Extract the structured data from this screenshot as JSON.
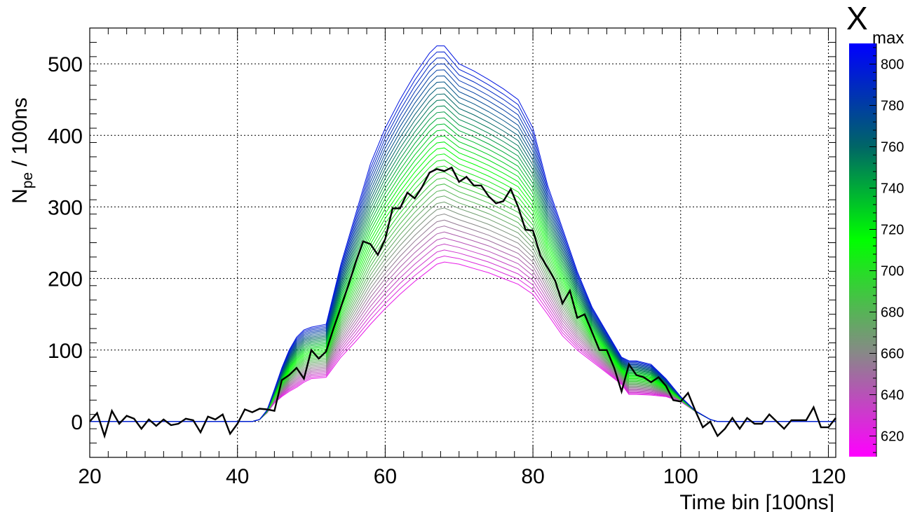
{
  "chart_data": {
    "type": "line",
    "xlabel": "Time bin [100ns]",
    "ylabel_main": "N",
    "ylabel_sub": "pe",
    "ylabel_rest": " / 100ns",
    "xlim": [
      20,
      121
    ],
    "ylim": [
      -50,
      550
    ],
    "xticks": [
      20,
      40,
      60,
      80,
      100,
      120
    ],
    "yticks": [
      0,
      100,
      200,
      300,
      400,
      500
    ],
    "grid": true,
    "colorbar": {
      "title_main": "X",
      "title_sub": "max",
      "range": [
        610,
        810
      ],
      "ticks": [
        620,
        640,
        660,
        680,
        700,
        720,
        740,
        760,
        780,
        800
      ],
      "colors": [
        {
          "v": 610,
          "c": "#ff00ff"
        },
        {
          "v": 660,
          "c": "#888888"
        },
        {
          "v": 715,
          "c": "#00ff00"
        },
        {
          "v": 760,
          "c": "#006666"
        },
        {
          "v": 810,
          "c": "#0000ff"
        }
      ]
    },
    "model_family": {
      "xmax_values": [
        620,
        625,
        630,
        635,
        640,
        645,
        650,
        655,
        660,
        665,
        670,
        675,
        680,
        685,
        690,
        695,
        700,
        705,
        710,
        715,
        720,
        725,
        730,
        735,
        740,
        745,
        750,
        755,
        760,
        765,
        770,
        775,
        780,
        785,
        790,
        795,
        800
      ],
      "x": [
        20,
        42,
        43,
        44,
        45,
        46,
        47,
        48,
        49,
        50,
        52,
        54,
        56,
        58,
        60,
        62,
        64,
        66,
        67,
        68,
        70,
        72,
        74,
        76,
        78,
        80,
        82,
        84,
        86,
        88,
        90,
        92,
        93,
        94,
        96,
        98,
        100,
        102,
        104,
        105,
        121
      ],
      "y_low": [
        0,
        0,
        3,
        12,
        26,
        35,
        42,
        48,
        55,
        60,
        62,
        90,
        112,
        136,
        158,
        178,
        196,
        212,
        220,
        223,
        220,
        214,
        208,
        200,
        192,
        178,
        150,
        120,
        100,
        84,
        68,
        52,
        38,
        38,
        37,
        35,
        28,
        14,
        3,
        0,
        0
      ],
      "y_high": [
        0,
        0,
        3,
        16,
        45,
        75,
        100,
        118,
        128,
        132,
        136,
        220,
        290,
        360,
        410,
        450,
        485,
        515,
        525,
        525,
        500,
        490,
        478,
        465,
        450,
        410,
        330,
        270,
        210,
        160,
        125,
        90,
        85,
        85,
        80,
        60,
        35,
        15,
        3,
        0,
        0
      ]
    },
    "data_series": {
      "name": "",
      "color": "#000000",
      "x": [
        20,
        21,
        22,
        23,
        24,
        25,
        26,
        27,
        28,
        29,
        30,
        31,
        32,
        33,
        34,
        35,
        36,
        37,
        38,
        39,
        40,
        41,
        42,
        43,
        44,
        45,
        46,
        47,
        48,
        49,
        50,
        51,
        52,
        53,
        54,
        55,
        56,
        57,
        58,
        59,
        60,
        61,
        62,
        63,
        64,
        65,
        66,
        67,
        68,
        69,
        70,
        71,
        72,
        73,
        74,
        75,
        76,
        77,
        78,
        79,
        80,
        81,
        82,
        83,
        84,
        85,
        86,
        87,
        88,
        89,
        90,
        91,
        92,
        93,
        94,
        95,
        96,
        97,
        98,
        99,
        100,
        101,
        102,
        103,
        104,
        105,
        106,
        107,
        108,
        109,
        110,
        111,
        112,
        113,
        114,
        115,
        116,
        117,
        118,
        119,
        120,
        121
      ],
      "y": [
        0,
        12,
        -20,
        15,
        -3,
        8,
        4,
        -10,
        3,
        -6,
        3,
        -5,
        -3,
        4,
        2,
        -15,
        7,
        3,
        10,
        -17,
        -3,
        17,
        13,
        18,
        17,
        15,
        58,
        65,
        75,
        60,
        100,
        88,
        98,
        130,
        160,
        190,
        222,
        252,
        248,
        233,
        255,
        298,
        298,
        320,
        312,
        328,
        348,
        353,
        350,
        355,
        335,
        342,
        330,
        330,
        315,
        305,
        308,
        325,
        300,
        268,
        267,
        232,
        215,
        197,
        165,
        183,
        145,
        150,
        125,
        100,
        100,
        75,
        42,
        80,
        65,
        62,
        55,
        62,
        50,
        30,
        28,
        40,
        15,
        -8,
        0,
        -20,
        -10,
        5,
        -10,
        5,
        -3,
        -3,
        10,
        0,
        -10,
        2,
        2,
        2,
        20,
        -8,
        -8,
        5
      ]
    }
  }
}
